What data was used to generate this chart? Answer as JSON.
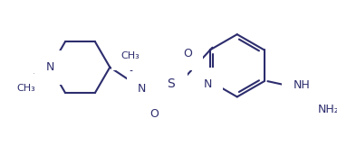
{
  "background_color": "#ffffff",
  "line_color": "#2d2d6e",
  "line_width": 1.5,
  "figsize": [
    3.72,
    1.62
  ],
  "dpi": 100,
  "xlim": [
    0,
    372
  ],
  "ylim": [
    0,
    162
  ]
}
